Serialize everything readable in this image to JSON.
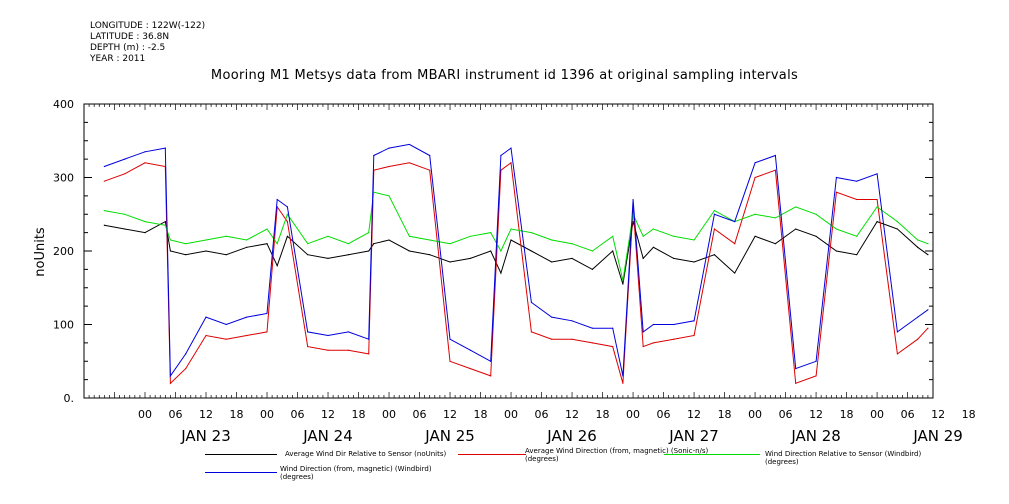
{
  "meta": {
    "longitude": "LONGITUDE : 122W(-122)",
    "latitude": "LATITUDE : 36.8N",
    "depth": "DEPTH (m) : -2.5",
    "year": "YEAR : 2011"
  },
  "chart_data": {
    "type": "line",
    "title": "Mooring M1 Metsys data from MBARI instrument id 1396 at original sampling intervals",
    "ylabel": "noUnits",
    "xlabel": "",
    "ylim": [
      0,
      400
    ],
    "yticks": [
      0,
      100,
      200,
      300,
      400
    ],
    "ytick_labels": [
      "0.",
      "100",
      "200",
      "300",
      "400"
    ],
    "xlim_hours": [
      -12,
      155
    ],
    "x_hour_labels": [
      "00",
      "06",
      "12",
      "18",
      "00",
      "06",
      "12",
      "18",
      "00",
      "06",
      "12",
      "18",
      "00",
      "06",
      "12",
      "18",
      "00",
      "06",
      "12",
      "18",
      "00",
      "06",
      "12",
      "18",
      "00",
      "06",
      "12",
      "18"
    ],
    "x_day_labels": [
      "JAN 23",
      "JAN 24",
      "JAN 25",
      "JAN 26",
      "JAN 27",
      "JAN 28",
      "JAN 29"
    ],
    "grid": false,
    "legend_position": "bottom",
    "series": [
      {
        "name": "Average Wind Dir Relative to Sensor (noUnits)",
        "color": "#000000",
        "x": [
          -8,
          -4,
          0,
          4,
          5,
          8,
          12,
          16,
          20,
          24,
          26,
          28,
          32,
          36,
          40,
          44,
          45,
          48,
          52,
          56,
          60,
          64,
          68,
          70,
          72,
          76,
          80,
          84,
          88,
          92,
          94,
          96,
          98,
          100,
          104,
          108,
          112,
          116,
          120,
          124,
          128,
          132,
          136,
          140,
          144,
          148,
          152,
          154
        ],
        "y": [
          235,
          230,
          225,
          240,
          200,
          195,
          200,
          195,
          205,
          210,
          180,
          220,
          195,
          190,
          195,
          200,
          210,
          215,
          200,
          195,
          185,
          190,
          200,
          170,
          215,
          200,
          185,
          190,
          175,
          200,
          155,
          240,
          190,
          205,
          190,
          185,
          195,
          170,
          220,
          210,
          230,
          220,
          200,
          195,
          240,
          230,
          205,
          195
        ]
      },
      {
        "name": "Average Wind Direction (from, magnetic) (Sonic-n/s) (degrees)",
        "color": "#dd0000",
        "x": [
          -8,
          -4,
          0,
          4,
          5,
          8,
          12,
          16,
          20,
          24,
          26,
          28,
          32,
          36,
          40,
          44,
          45,
          48,
          52,
          56,
          60,
          64,
          68,
          70,
          72,
          76,
          80,
          84,
          88,
          92,
          94,
          96,
          98,
          100,
          104,
          108,
          112,
          116,
          120,
          124,
          128,
          132,
          136,
          140,
          144,
          148,
          152,
          154
        ],
        "y": [
          295,
          305,
          320,
          315,
          20,
          40,
          85,
          80,
          85,
          90,
          260,
          240,
          70,
          65,
          65,
          60,
          310,
          315,
          320,
          310,
          50,
          40,
          30,
          310,
          320,
          90,
          80,
          80,
          75,
          70,
          20,
          260,
          70,
          75,
          80,
          85,
          230,
          210,
          300,
          310,
          20,
          30,
          280,
          270,
          270,
          60,
          80,
          95
        ]
      },
      {
        "name": "Wind Direction Relative to Sensor (Windbird) (degrees)",
        "color": "#00dd00",
        "x": [
          -8,
          -4,
          0,
          4,
          5,
          8,
          12,
          16,
          20,
          24,
          26,
          28,
          32,
          36,
          40,
          44,
          45,
          48,
          52,
          56,
          60,
          64,
          68,
          70,
          72,
          76,
          80,
          84,
          88,
          92,
          94,
          96,
          98,
          100,
          104,
          108,
          112,
          116,
          120,
          124,
          128,
          132,
          136,
          140,
          144,
          148,
          152,
          154
        ],
        "y": [
          255,
          250,
          240,
          235,
          215,
          210,
          215,
          220,
          215,
          230,
          210,
          250,
          210,
          220,
          210,
          225,
          280,
          275,
          220,
          215,
          210,
          220,
          225,
          200,
          230,
          225,
          215,
          210,
          200,
          220,
          160,
          250,
          220,
          230,
          220,
          215,
          255,
          240,
          250,
          245,
          260,
          250,
          230,
          220,
          260,
          240,
          215,
          210
        ]
      },
      {
        "name": "Wind Direction (from, magnetic) (Windbird) (degrees)",
        "color": "#0000dd",
        "x": [
          -8,
          -4,
          0,
          4,
          5,
          8,
          12,
          16,
          20,
          24,
          26,
          28,
          32,
          36,
          40,
          44,
          45,
          48,
          52,
          56,
          60,
          64,
          68,
          70,
          72,
          76,
          80,
          84,
          88,
          92,
          94,
          96,
          98,
          100,
          104,
          108,
          112,
          116,
          120,
          124,
          128,
          132,
          136,
          140,
          144,
          148,
          152,
          154
        ],
        "y": [
          315,
          325,
          335,
          340,
          30,
          60,
          110,
          100,
          110,
          115,
          270,
          260,
          90,
          85,
          90,
          80,
          330,
          340,
          345,
          330,
          80,
          65,
          50,
          330,
          340,
          130,
          110,
          105,
          95,
          95,
          30,
          270,
          90,
          100,
          100,
          105,
          250,
          240,
          320,
          330,
          40,
          50,
          300,
          295,
          305,
          90,
          110,
          120
        ]
      }
    ]
  }
}
